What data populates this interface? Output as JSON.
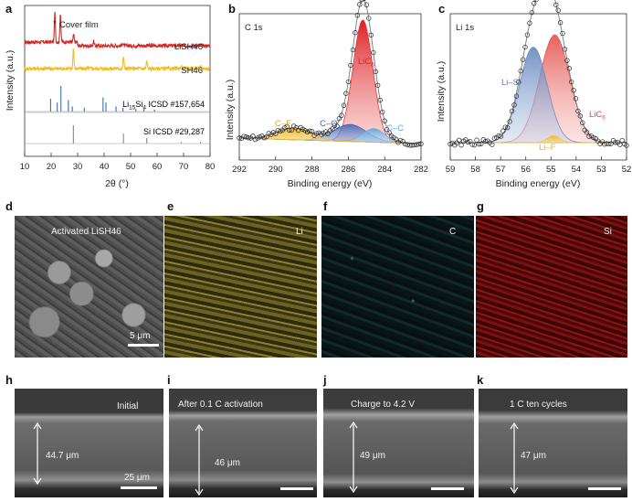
{
  "chart_data": [
    {
      "panel": "a",
      "type": "line",
      "xlabel": "2θ (°)",
      "ylabel": "Intensity (a.u.)",
      "xlim": [
        10,
        80
      ],
      "xticks": [
        10,
        20,
        30,
        40,
        50,
        60,
        70,
        80
      ],
      "legend_marker": "*",
      "legend_label": "Cover film",
      "series": [
        {
          "name": "LiSH46",
          "color": "#d42a26",
          "peaks": [
            {
              "x": 21.4,
              "h": 1.0
            },
            {
              "x": 23.5,
              "h": 1.0
            },
            {
              "x": 28.5,
              "h": 0.25
            },
            {
              "x": 36.0,
              "h": 0.15
            },
            {
              "x": 47.0,
              "h": 0.1
            }
          ]
        },
        {
          "name": "SH46",
          "color": "#f3bc1c",
          "peaks": [
            {
              "x": 28.4,
              "h": 1.0
            },
            {
              "x": 47.3,
              "h": 0.6
            },
            {
              "x": 56.1,
              "h": 0.35
            },
            {
              "x": 69.1,
              "h": 0.15
            },
            {
              "x": 76.4,
              "h": 0.15
            }
          ]
        }
      ],
      "references": [
        {
          "label_main": "Li",
          "sub1": "15",
          "mid": "Si",
          "sub2": "4",
          "suffix": " ICSD #157,654",
          "color": "#3a6fa8",
          "lines": [
            [
              19.8,
              0.5
            ],
            [
              22.3,
              0.35
            ],
            [
              23.7,
              1.0
            ],
            [
              26.5,
              0.45
            ],
            [
              28.0,
              0.2
            ],
            [
              32.5,
              0.15
            ],
            [
              39.6,
              0.55
            ],
            [
              40.7,
              0.35
            ],
            [
              44.5,
              0.2
            ],
            [
              47.1,
              0.15
            ],
            [
              52.0,
              0.1
            ],
            [
              55.0,
              0.1
            ],
            [
              59.0,
              0.08
            ]
          ]
        },
        {
          "label": "Si ICSD #29,287",
          "color": "#888888",
          "lines": [
            [
              28.4,
              1.0
            ],
            [
              47.3,
              0.55
            ],
            [
              56.1,
              0.3
            ],
            [
              69.1,
              0.08
            ],
            [
              76.4,
              0.1
            ]
          ]
        }
      ]
    },
    {
      "panel": "b",
      "type": "area",
      "title": "C 1s",
      "xlabel": "Binding energy (eV)",
      "ylabel": "Intensity (a.u.)",
      "xlim": [
        292,
        282
      ],
      "xticks": [
        292,
        290,
        288,
        286,
        284,
        282
      ],
      "components": [
        {
          "label": "LiC",
          "sub": "6",
          "center": 285.2,
          "sigma": 0.55,
          "amp": 0.72,
          "color": "#e63a3a"
        },
        {
          "label": "C–O",
          "center": 285.9,
          "sigma": 0.9,
          "amp": 0.1,
          "color": "#3f67b5"
        },
        {
          "label": "C–C",
          "center": 284.6,
          "sigma": 0.6,
          "amp": 0.08,
          "color": "#6fb0e3"
        },
        {
          "label": "C–F",
          "center": 289.0,
          "sigma": 0.9,
          "amp": 0.07,
          "color": "#f0b82e"
        }
      ]
    },
    {
      "panel": "c",
      "type": "area",
      "title": "Li 1s",
      "xlabel": "Binding energy (eV)",
      "ylabel": "Intensity (a.u.)",
      "xlim": [
        59,
        52
      ],
      "xticks": [
        59,
        58,
        57,
        56,
        55,
        54,
        53,
        52
      ],
      "components": [
        {
          "label": "Li–Si",
          "center": 55.7,
          "sigma": 0.55,
          "amp": 0.55,
          "color": "#6c8fc4"
        },
        {
          "label": "LiC",
          "sub": "6",
          "center": 54.85,
          "sigma": 0.6,
          "amp": 0.62,
          "color": "#e85a5a"
        },
        {
          "label": "Li–F",
          "center": 54.9,
          "sigma": 0.25,
          "amp": 0.04,
          "color": "#f3c62a"
        }
      ]
    }
  ],
  "images": [
    {
      "panel": "d",
      "label": "Activated LiSH46",
      "scalebar": "5 μm"
    },
    {
      "panel": "e",
      "label": "Li"
    },
    {
      "panel": "f",
      "label": "C"
    },
    {
      "panel": "g",
      "label": "Si"
    },
    {
      "panel": "h",
      "label": "Initial",
      "thickness": "44.7 μm",
      "scalebar": "25 μm"
    },
    {
      "panel": "i",
      "label": "After 0.1 C activation",
      "thickness": "46 μm"
    },
    {
      "panel": "j",
      "label": "Charge to 4.2 V",
      "thickness": "49 μm"
    },
    {
      "panel": "k",
      "label": "1 C ten cycles",
      "thickness": "47 μm"
    }
  ]
}
